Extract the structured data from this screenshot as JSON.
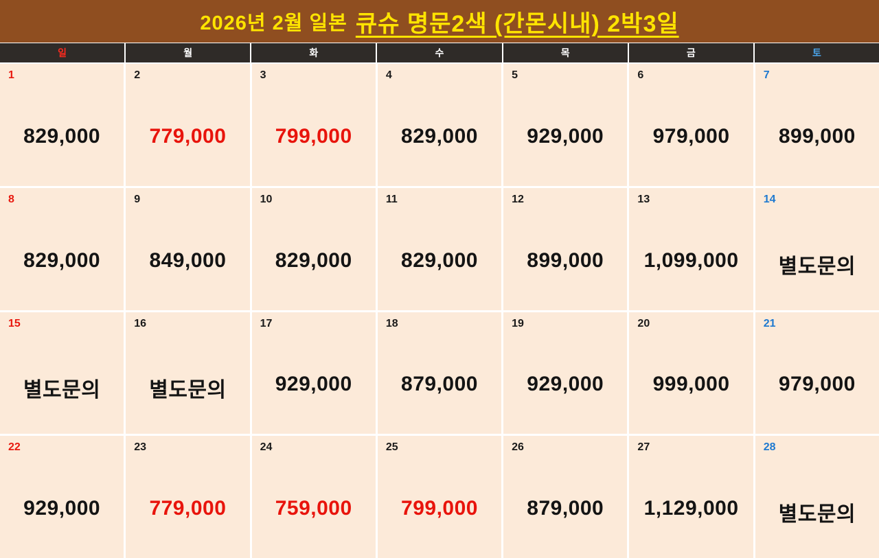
{
  "title": {
    "prefix": "2026년 2월 일본",
    "main": "큐슈 명문2색 (간몬시내) 2박3일"
  },
  "colors": {
    "title_bg": "#8f4e20",
    "title_text": "#ffe400",
    "weekday_header_bg": "#2f2b28",
    "sunday_red": "#e8190f",
    "saturday_blue": "#1e79d0",
    "cell_bg": "#fcead9",
    "price_default": "#141414",
    "price_highlight": "#e8140c"
  },
  "weekdays": [
    "일",
    "월",
    "화",
    "수",
    "목",
    "금",
    "토"
  ],
  "calendar": {
    "month": "2026-02",
    "cells": [
      {
        "day": "1",
        "price": "829,000",
        "highlight": false
      },
      {
        "day": "2",
        "price": "779,000",
        "highlight": true
      },
      {
        "day": "3",
        "price": "799,000",
        "highlight": true
      },
      {
        "day": "4",
        "price": "829,000",
        "highlight": false
      },
      {
        "day": "5",
        "price": "929,000",
        "highlight": false
      },
      {
        "day": "6",
        "price": "979,000",
        "highlight": false
      },
      {
        "day": "7",
        "price": "899,000",
        "highlight": false
      },
      {
        "day": "8",
        "price": "829,000",
        "highlight": false
      },
      {
        "day": "9",
        "price": "849,000",
        "highlight": false
      },
      {
        "day": "10",
        "price": "829,000",
        "highlight": false
      },
      {
        "day": "11",
        "price": "829,000",
        "highlight": false
      },
      {
        "day": "12",
        "price": "899,000",
        "highlight": false
      },
      {
        "day": "13",
        "price": "1,099,000",
        "highlight": false
      },
      {
        "day": "14",
        "price": "별도문의",
        "highlight": false
      },
      {
        "day": "15",
        "price": "별도문의",
        "highlight": false
      },
      {
        "day": "16",
        "price": "별도문의",
        "highlight": false
      },
      {
        "day": "17",
        "price": "929,000",
        "highlight": false
      },
      {
        "day": "18",
        "price": "879,000",
        "highlight": false
      },
      {
        "day": "19",
        "price": "929,000",
        "highlight": false
      },
      {
        "day": "20",
        "price": "999,000",
        "highlight": false
      },
      {
        "day": "21",
        "price": "979,000",
        "highlight": false
      },
      {
        "day": "22",
        "price": "929,000",
        "highlight": false
      },
      {
        "day": "23",
        "price": "779,000",
        "highlight": true
      },
      {
        "day": "24",
        "price": "759,000",
        "highlight": true
      },
      {
        "day": "25",
        "price": "799,000",
        "highlight": true
      },
      {
        "day": "26",
        "price": "879,000",
        "highlight": false
      },
      {
        "day": "27",
        "price": "1,129,000",
        "highlight": false
      },
      {
        "day": "28",
        "price": "별도문의",
        "highlight": false
      }
    ]
  }
}
